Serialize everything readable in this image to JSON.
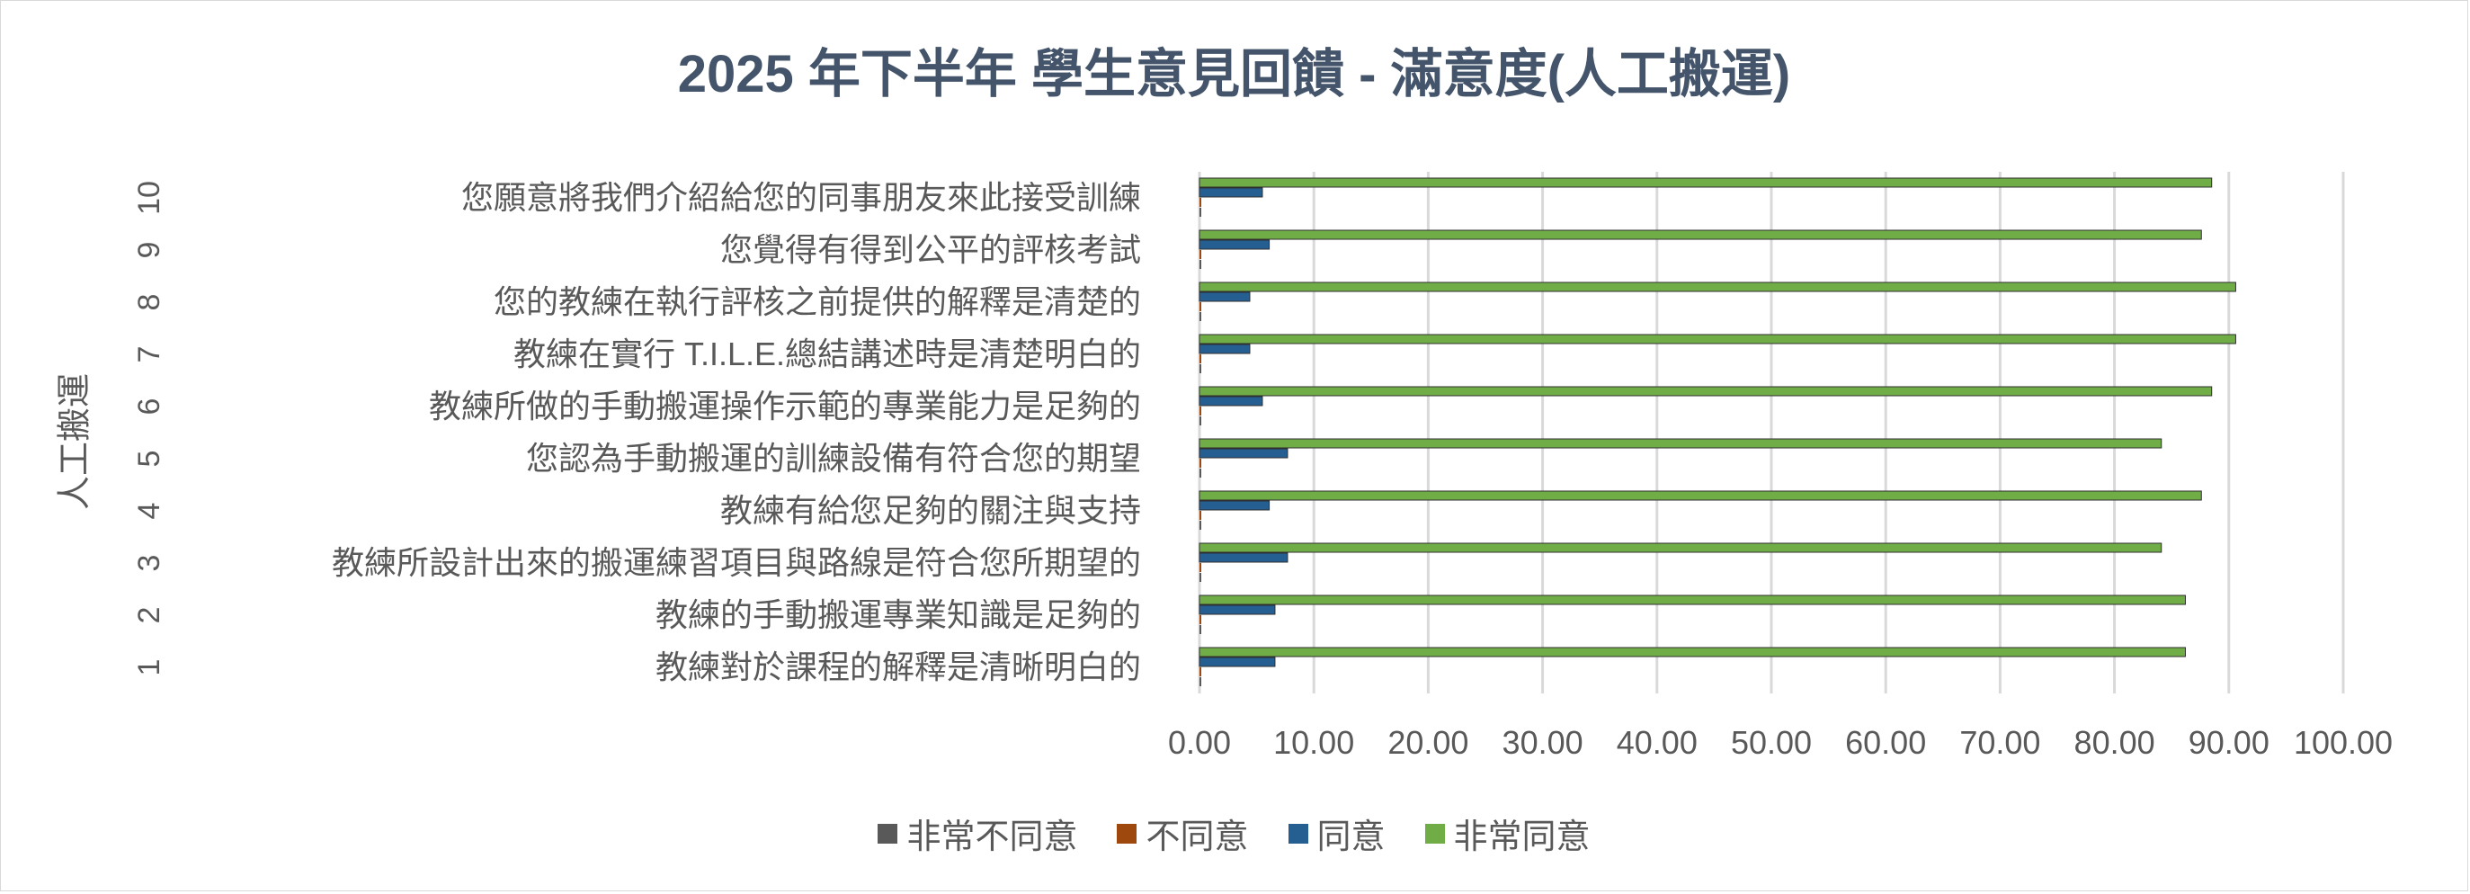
{
  "chart_data": {
    "type": "bar",
    "orientation": "horizontal",
    "title": "2025 年下半年 學生意見回饋 - 滿意度(人工搬運)",
    "ylabel": "人工搬運",
    "xlim": [
      0,
      100
    ],
    "x_ticks": [
      "0.00",
      "10.00",
      "20.00",
      "30.00",
      "40.00",
      "50.00",
      "60.00",
      "70.00",
      "80.00",
      "90.00",
      "100.00"
    ],
    "grid": "vertical",
    "legend_position": "bottom",
    "categories": [
      {
        "number": "1",
        "label": "教練對於課程的解釋是清晰明白的"
      },
      {
        "number": "2",
        "label": "教練的手動搬運專業知識是足夠的"
      },
      {
        "number": "3",
        "label": "教練所設計出來的搬運練習項目與路線是符合您所期望的"
      },
      {
        "number": "4",
        "label": "教練有給您足夠的關注與支持"
      },
      {
        "number": "5",
        "label": "您認為手動搬運的訓練設備有符合您的期望"
      },
      {
        "number": "6",
        "label": "教練所做的手動搬運操作示範的專業能力是足夠的"
      },
      {
        "number": "7",
        "label": "教練在實行 T.I.L.E.總結講述時是清楚明白的"
      },
      {
        "number": "8",
        "label": "您的教練在執行評核之前提供的解釋是清楚的"
      },
      {
        "number": "9",
        "label": "您覺得有得到公平的評核考試"
      },
      {
        "number": "10",
        "label": "您願意將我們介紹給您的同事朋友來此接受訓練"
      }
    ],
    "series": [
      {
        "name": "非常不同意",
        "color": "#595959",
        "values": [
          0,
          0,
          0,
          0,
          0,
          0,
          0,
          0,
          0,
          0
        ]
      },
      {
        "name": "不同意",
        "color": "#9e480e",
        "values": [
          0,
          0,
          0,
          0,
          0,
          0,
          0,
          0,
          0,
          0
        ]
      },
      {
        "name": "同意",
        "color": "#255e91",
        "values": [
          6.6,
          6.6,
          7.7,
          6.1,
          7.7,
          5.5,
          4.4,
          4.4,
          6.1,
          5.5
        ]
      },
      {
        "name": "非常同意",
        "color": "#70ad47",
        "values": [
          86.2,
          86.2,
          84.1,
          87.6,
          84.1,
          88.5,
          90.6,
          90.6,
          87.6,
          88.5
        ]
      }
    ]
  }
}
